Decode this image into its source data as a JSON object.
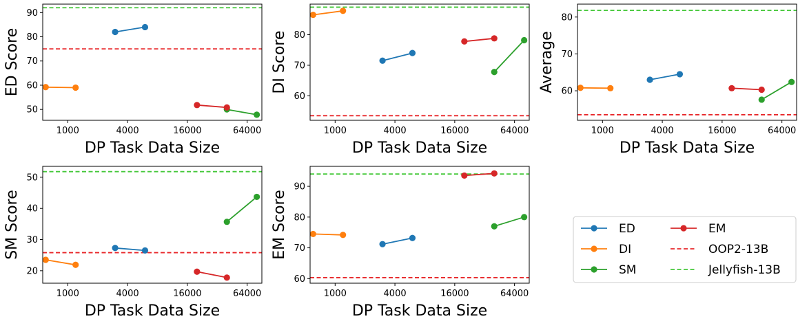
{
  "colors": {
    "ED": "#1f77b4",
    "DI": "#ff7f0e",
    "SM": "#2ca02c",
    "EM": "#d62728",
    "OOP2-13B": "#e8282b",
    "Jellyfish-13B": "#45c83a"
  },
  "legend": {
    "placement": "lower-right",
    "entries": [
      {
        "key": "ED",
        "label": "ED",
        "style": "solid-marker"
      },
      {
        "key": "EM",
        "label": "EM",
        "style": "solid-marker"
      },
      {
        "key": "DI",
        "label": "DI",
        "style": "solid-marker"
      },
      {
        "key": "OOP2-13B",
        "label": "OOP2-13B",
        "style": "dashed"
      },
      {
        "key": "SM",
        "label": "SM",
        "style": "solid-marker"
      },
      {
        "key": "Jellyfish-13B",
        "label": "Jellyfish-13B",
        "style": "dashed"
      }
    ]
  },
  "chart_data": [
    {
      "type": "line",
      "xscale": "log2",
      "xlabel": "DP Task Data Size",
      "ylabel": "ED Score",
      "xlim": [
        560,
        90000
      ],
      "ylim": [
        45.5,
        93.5
      ],
      "xticks": [
        1000,
        4000,
        16000,
        64000
      ],
      "xtick_labels": [
        "1000",
        "4000",
        "16000",
        "64000"
      ],
      "yticks": [
        50,
        60,
        70,
        80,
        90
      ],
      "series": [
        {
          "key": "ED",
          "x": [
            3000,
            6000
          ],
          "y": [
            82,
            84
          ]
        },
        {
          "key": "DI",
          "x": [
            600,
            1200
          ],
          "y": [
            59.2,
            59
          ]
        },
        {
          "key": "SM",
          "x": [
            40000,
            80000
          ],
          "y": [
            50,
            47.8
          ]
        },
        {
          "key": "EM",
          "x": [
            20000,
            40000
          ],
          "y": [
            51.8,
            50.8
          ]
        }
      ],
      "hlines": [
        {
          "key": "OOP2-13B",
          "y": 75
        },
        {
          "key": "Jellyfish-13B",
          "y": 92
        }
      ]
    },
    {
      "type": "line",
      "xscale": "log2",
      "xlabel": "DP Task Data Size",
      "ylabel": "DI Score",
      "xlim": [
        560,
        90000
      ],
      "ylim": [
        52,
        90
      ],
      "xticks": [
        1000,
        4000,
        16000,
        64000
      ],
      "xtick_labels": [
        "1000",
        "4000",
        "16000",
        "64000"
      ],
      "yticks": [
        60,
        70,
        80
      ],
      "series": [
        {
          "key": "ED",
          "x": [
            3000,
            6000
          ],
          "y": [
            71.5,
            74
          ]
        },
        {
          "key": "DI",
          "x": [
            600,
            1200
          ],
          "y": [
            86.5,
            87.8
          ]
        },
        {
          "key": "SM",
          "x": [
            40000,
            80000
          ],
          "y": [
            67.8,
            78.2
          ]
        },
        {
          "key": "EM",
          "x": [
            20000,
            40000
          ],
          "y": [
            77.8,
            78.8
          ]
        }
      ],
      "hlines": [
        {
          "key": "OOP2-13B",
          "y": 53.5
        },
        {
          "key": "Jellyfish-13B",
          "y": 89
        }
      ]
    },
    {
      "type": "line",
      "xscale": "log2",
      "xlabel": "DP Task Data Size",
      "ylabel": "Average",
      "xlim": [
        560,
        90000
      ],
      "ylim": [
        52,
        83.5
      ],
      "xticks": [
        1000,
        4000,
        16000,
        64000
      ],
      "xtick_labels": [
        "1000",
        "4000",
        "16000",
        "64000"
      ],
      "yticks": [
        60,
        70,
        80
      ],
      "series": [
        {
          "key": "ED",
          "x": [
            3000,
            6000
          ],
          "y": [
            63,
            64.5
          ]
        },
        {
          "key": "DI",
          "x": [
            600,
            1200
          ],
          "y": [
            60.8,
            60.7
          ]
        },
        {
          "key": "SM",
          "x": [
            40000,
            80000
          ],
          "y": [
            57.6,
            62.4
          ]
        },
        {
          "key": "EM",
          "x": [
            20000,
            40000
          ],
          "y": [
            60.7,
            60.3
          ]
        }
      ],
      "hlines": [
        {
          "key": "OOP2-13B",
          "y": 53.5
        },
        {
          "key": "Jellyfish-13B",
          "y": 81.8
        }
      ]
    },
    {
      "type": "line",
      "xscale": "log2",
      "xlabel": "DP Task Data Size",
      "ylabel": "SM Score",
      "xlim": [
        560,
        90000
      ],
      "ylim": [
        16,
        53.5
      ],
      "xticks": [
        1000,
        4000,
        16000,
        64000
      ],
      "xtick_labels": [
        "1000",
        "4000",
        "16000",
        "64000"
      ],
      "yticks": [
        20,
        30,
        40,
        50
      ],
      "series": [
        {
          "key": "ED",
          "x": [
            3000,
            6000
          ],
          "y": [
            27.3,
            26.5
          ]
        },
        {
          "key": "DI",
          "x": [
            600,
            1200
          ],
          "y": [
            23.5,
            21.9
          ]
        },
        {
          "key": "SM",
          "x": [
            40000,
            80000
          ],
          "y": [
            35.7,
            43.7
          ]
        },
        {
          "key": "EM",
          "x": [
            20000,
            40000
          ],
          "y": [
            19.7,
            17.8
          ]
        }
      ],
      "hlines": [
        {
          "key": "OOP2-13B",
          "y": 25.8
        },
        {
          "key": "Jellyfish-13B",
          "y": 51.8
        }
      ]
    },
    {
      "type": "line",
      "xscale": "log2",
      "xlabel": "DP Task Data Size",
      "ylabel": "EM Score",
      "xlim": [
        560,
        90000
      ],
      "ylim": [
        58.5,
        96.5
      ],
      "xticks": [
        1000,
        4000,
        16000,
        64000
      ],
      "xtick_labels": [
        "1000",
        "4000",
        "16000",
        "64000"
      ],
      "yticks": [
        60,
        70,
        80,
        90
      ],
      "series": [
        {
          "key": "ED",
          "x": [
            3000,
            6000
          ],
          "y": [
            71.2,
            73.2
          ]
        },
        {
          "key": "DI",
          "x": [
            600,
            1200
          ],
          "y": [
            74.5,
            74.2
          ]
        },
        {
          "key": "SM",
          "x": [
            40000,
            80000
          ],
          "y": [
            77,
            80
          ]
        },
        {
          "key": "EM",
          "x": [
            20000,
            40000
          ],
          "y": [
            93.5,
            94.2
          ]
        }
      ],
      "hlines": [
        {
          "key": "OOP2-13B",
          "y": 60.3
        },
        {
          "key": "Jellyfish-13B",
          "y": 94
        }
      ]
    }
  ]
}
